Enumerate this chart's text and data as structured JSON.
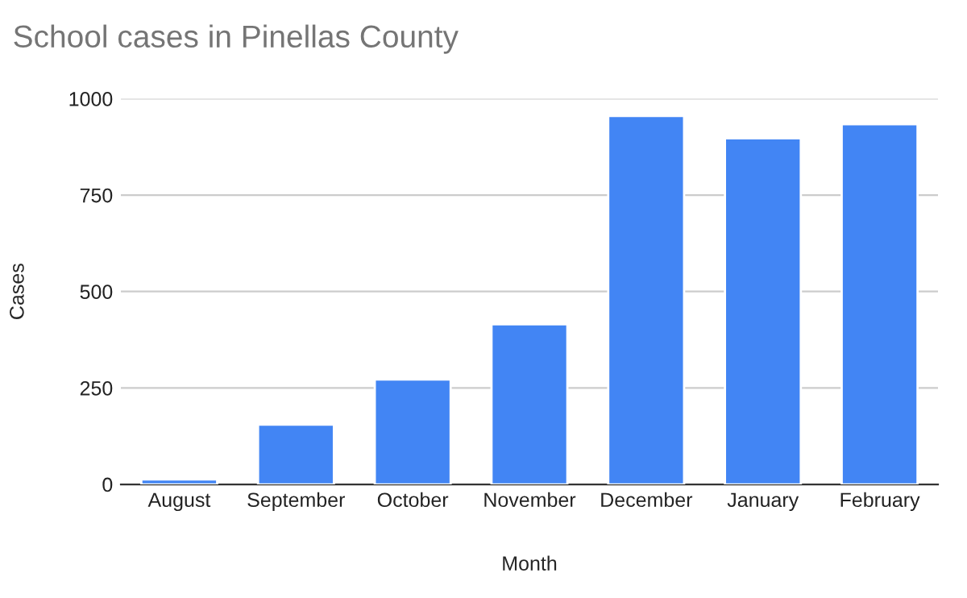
{
  "chart_data": {
    "type": "bar",
    "title": "School cases in Pinellas County",
    "xlabel": "Month",
    "ylabel": "Cases",
    "categories": [
      "August",
      "September",
      "October",
      "November",
      "December",
      "January",
      "February"
    ],
    "values": [
      13,
      155,
      272,
      415,
      955,
      897,
      934
    ],
    "color": "#4285f4",
    "ylim": [
      0,
      1000
    ],
    "yticks": [
      0,
      250,
      500,
      750,
      1000
    ],
    "grid": "y"
  }
}
